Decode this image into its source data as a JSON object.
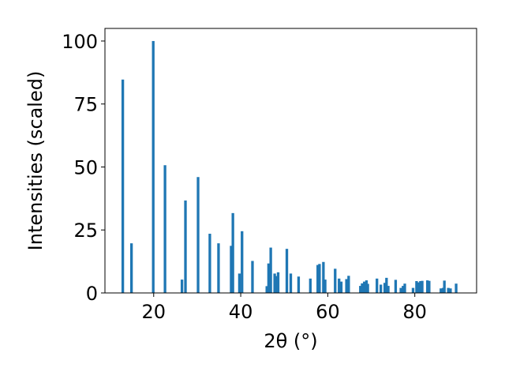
{
  "chart_data": {
    "type": "bar",
    "title": "",
    "xlabel": "2θ (°)",
    "ylabel": "Intensities (scaled)",
    "xlim": [
      8.8,
      94.2
    ],
    "ylim": [
      0,
      105
    ],
    "xticks": [
      20,
      40,
      60,
      80
    ],
    "yticks": [
      0,
      25,
      50,
      75,
      100
    ],
    "xtick_labels": [
      "20",
      "40",
      "60",
      "80"
    ],
    "ytick_labels": [
      "0",
      "25",
      "50",
      "75",
      "100"
    ],
    "grid": false,
    "legend": "none",
    "bar_color": "#1f77b4",
    "bar_width_deg": 0.6,
    "points": [
      {
        "x": 12.9,
        "y": 84.7
      },
      {
        "x": 14.9,
        "y": 19.7
      },
      {
        "x": 19.9,
        "y": 100.0
      },
      {
        "x": 22.6,
        "y": 50.7
      },
      {
        "x": 26.5,
        "y": 5.3
      },
      {
        "x": 27.3,
        "y": 36.7
      },
      {
        "x": 30.2,
        "y": 46.0
      },
      {
        "x": 32.9,
        "y": 23.5
      },
      {
        "x": 34.9,
        "y": 19.7
      },
      {
        "x": 37.8,
        "y": 18.7
      },
      {
        "x": 38.2,
        "y": 31.7
      },
      {
        "x": 39.7,
        "y": 7.7
      },
      {
        "x": 40.3,
        "y": 24.5
      },
      {
        "x": 42.7,
        "y": 12.7
      },
      {
        "x": 46.0,
        "y": 2.7
      },
      {
        "x": 46.4,
        "y": 11.7
      },
      {
        "x": 46.9,
        "y": 18.0
      },
      {
        "x": 47.8,
        "y": 7.7
      },
      {
        "x": 48.2,
        "y": 6.7
      },
      {
        "x": 48.6,
        "y": 8.2
      },
      {
        "x": 50.6,
        "y": 17.5
      },
      {
        "x": 51.5,
        "y": 7.7
      },
      {
        "x": 53.3,
        "y": 6.5
      },
      {
        "x": 56.0,
        "y": 5.7
      },
      {
        "x": 57.7,
        "y": 11.1
      },
      {
        "x": 58.1,
        "y": 11.5
      },
      {
        "x": 59.0,
        "y": 12.3
      },
      {
        "x": 59.4,
        "y": 5.3
      },
      {
        "x": 61.7,
        "y": 9.6
      },
      {
        "x": 62.6,
        "y": 5.7
      },
      {
        "x": 63.1,
        "y": 4.5
      },
      {
        "x": 64.3,
        "y": 5.5
      },
      {
        "x": 64.8,
        "y": 6.8
      },
      {
        "x": 67.5,
        "y": 2.8
      },
      {
        "x": 67.9,
        "y": 3.8
      },
      {
        "x": 68.4,
        "y": 4.5
      },
      {
        "x": 68.9,
        "y": 5.0
      },
      {
        "x": 69.2,
        "y": 3.6
      },
      {
        "x": 71.3,
        "y": 5.7
      },
      {
        "x": 72.2,
        "y": 3.3
      },
      {
        "x": 73.1,
        "y": 4.0
      },
      {
        "x": 73.5,
        "y": 6.0
      },
      {
        "x": 73.9,
        "y": 2.8
      },
      {
        "x": 75.6,
        "y": 5.2
      },
      {
        "x": 76.8,
        "y": 2.0
      },
      {
        "x": 77.3,
        "y": 2.8
      },
      {
        "x": 77.7,
        "y": 3.7
      },
      {
        "x": 79.6,
        "y": 2.0
      },
      {
        "x": 80.4,
        "y": 4.7
      },
      {
        "x": 80.8,
        "y": 4.2
      },
      {
        "x": 81.3,
        "y": 4.7
      },
      {
        "x": 81.7,
        "y": 4.8
      },
      {
        "x": 82.9,
        "y": 5.0
      },
      {
        "x": 83.3,
        "y": 4.8
      },
      {
        "x": 86.0,
        "y": 1.8
      },
      {
        "x": 86.5,
        "y": 2.0
      },
      {
        "x": 86.8,
        "y": 4.9
      },
      {
        "x": 87.7,
        "y": 2.0
      },
      {
        "x": 88.2,
        "y": 1.8
      },
      {
        "x": 89.5,
        "y": 3.7
      }
    ]
  }
}
